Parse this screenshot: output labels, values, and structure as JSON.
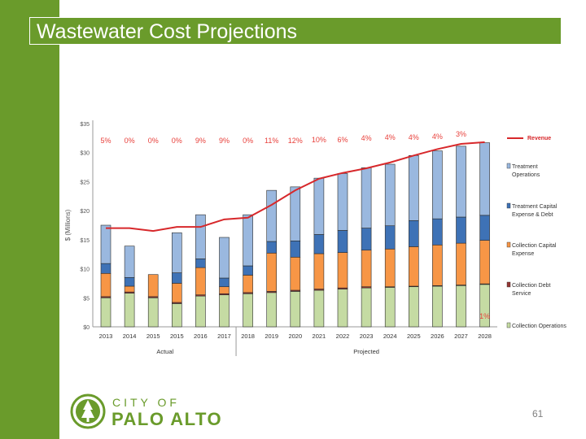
{
  "slide": {
    "title": "Wastewater Cost Projections",
    "page_number": "61"
  },
  "logo": {
    "city_of": "CITY OF",
    "name": "PALO ALTO"
  },
  "colors": {
    "brand_green": "#6a9b2b",
    "revenue_line": "#d7282b",
    "percent_labels": "#e8403b"
  },
  "chart_data": {
    "type": "bar",
    "stacked": true,
    "ylabel": "$ (Millions)",
    "ylim": [
      0,
      35
    ],
    "yticks": [
      0,
      5,
      10,
      15,
      20,
      25,
      30,
      35
    ],
    "ytick_labels": [
      "$0",
      "$5",
      "$10",
      "$15",
      "$20",
      "$25",
      "$30",
      "$35"
    ],
    "categories": [
      "2013",
      "2014",
      "2015",
      "2015",
      "2016",
      "2017",
      "2018",
      "2019",
      "2020",
      "2021",
      "2022",
      "2023",
      "2024",
      "2025",
      "2026",
      "2027",
      "2028"
    ],
    "series": [
      {
        "name": "Collection Operations",
        "color": "#c5dba3",
        "values": [
          5.0,
          5.8,
          5.0,
          4.0,
          5.3,
          5.5,
          5.7,
          5.9,
          6.1,
          6.3,
          6.5,
          6.7,
          6.8,
          6.9,
          7.0,
          7.1,
          7.3
        ]
      },
      {
        "name": "Collection Debt Service",
        "color": "#953735",
        "values": [
          0.2,
          0.2,
          0.2,
          0.2,
          0.2,
          0.2,
          0.2,
          0.2,
          0.2,
          0.2,
          0.2,
          0.2,
          0.1,
          0.1,
          0.1,
          0.1,
          0.1
        ]
      },
      {
        "name": "Collection Capital Expense",
        "color": "#f79646",
        "values": [
          4.0,
          1.0,
          3.8,
          3.3,
          4.7,
          1.2,
          3.0,
          6.6,
          5.7,
          6.1,
          6.1,
          6.3,
          6.5,
          6.8,
          7.0,
          7.2,
          7.5
        ]
      },
      {
        "name": "Treatment Capital Expense & Debt",
        "color": "#3e72b6",
        "values": [
          1.7,
          1.5,
          0,
          1.8,
          1.5,
          1.5,
          1.6,
          2.0,
          2.8,
          3.3,
          3.8,
          3.8,
          4.0,
          4.5,
          4.5,
          4.5,
          4.3
        ]
      },
      {
        "name": "Treatment Operations",
        "color": "#9ab8df",
        "values": [
          6.6,
          5.4,
          0,
          6.9,
          7.6,
          7.0,
          8.8,
          8.8,
          9.3,
          9.7,
          9.8,
          10.4,
          10.6,
          11.2,
          11.7,
          12.2,
          12.5
        ]
      }
    ],
    "revenue": {
      "name": "Revenue",
      "values": [
        17.0,
        17.0,
        16.5,
        17.2,
        17.2,
        18.5,
        18.8,
        21.0,
        23.5,
        25.5,
        26.5,
        27.3,
        28.3,
        29.5,
        30.6,
        31.5,
        31.8
      ]
    },
    "percent_labels": [
      "5%",
      "0%",
      "0%",
      "0%",
      "9%",
      "9%",
      "0%",
      "11%",
      "12%",
      "10%",
      "6%",
      "4%",
      "4%",
      "4%",
      "4%",
      "3%",
      "1%"
    ],
    "group_labels": [
      "Actual",
      "Projected"
    ],
    "legend_position": "right"
  }
}
